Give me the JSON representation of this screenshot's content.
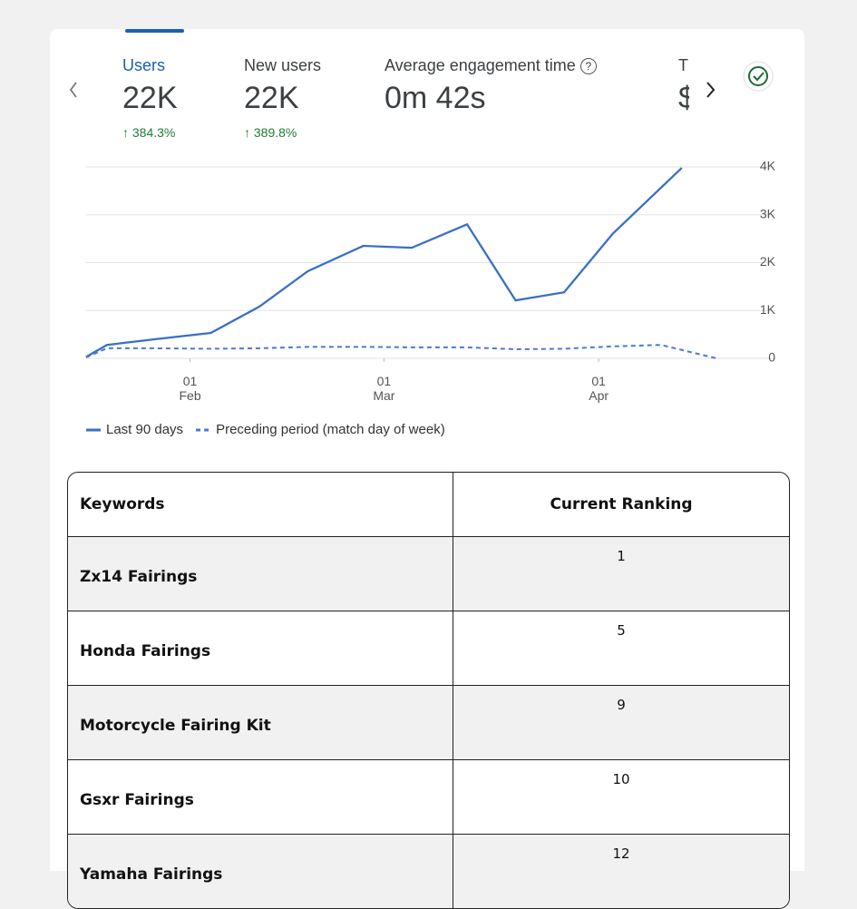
{
  "metrics": [
    {
      "label": "Users",
      "value": "22K",
      "change": "384.3%"
    },
    {
      "label": "New users",
      "value": "22K",
      "change": "389.8%"
    },
    {
      "label": "Average engagement time",
      "value": "0m 42s"
    },
    {
      "label": "T",
      "value": "$"
    }
  ],
  "chart_data": {
    "type": "line",
    "series": [
      {
        "name": "Last 90 days",
        "color": "#3a6fc4",
        "style": "solid",
        "x": [
          0,
          3,
          10,
          18,
          25,
          32,
          40,
          47,
          55,
          62,
          69,
          76,
          86
        ],
        "values": [
          30,
          280,
          400,
          530,
          1080,
          1820,
          2350,
          2310,
          2800,
          1210,
          1380,
          2600,
          3980
        ]
      },
      {
        "name": "Preceding period (match day of week)",
        "color": "#4a7bd0",
        "style": "dashed",
        "x": [
          0,
          3,
          10,
          18,
          25,
          32,
          40,
          47,
          55,
          62,
          69,
          76,
          83,
          91
        ],
        "values": [
          20,
          210,
          210,
          200,
          210,
          240,
          240,
          230,
          230,
          190,
          200,
          250,
          280,
          0
        ]
      }
    ],
    "xlim": [
      0,
      91
    ],
    "xticks": [
      {
        "value": 15,
        "label": "01 Feb"
      },
      {
        "value": 43,
        "label": "01 Mar"
      },
      {
        "value": 74,
        "label": "01 Apr"
      }
    ],
    "ylim": [
      0,
      4000
    ],
    "yticks": [
      0,
      {
        "value": 1000,
        "label": "1K"
      },
      {
        "value": 2000,
        "label": "2K"
      },
      {
        "value": 3000,
        "label": "3K"
      },
      {
        "value": 4000,
        "label": "4K"
      }
    ],
    "grid": true,
    "legend": "bottom-left"
  },
  "table": {
    "header": [
      "Keywords",
      "Current Ranking"
    ],
    "rows": [
      [
        "Zx14 Fairings",
        "1"
      ],
      [
        "Honda Fairings",
        "5"
      ],
      [
        "Motorcycle Fairing Kit",
        "9"
      ],
      [
        "Gsxr Fairings",
        "10"
      ],
      [
        "Yamaha Fairings",
        "12"
      ]
    ]
  }
}
